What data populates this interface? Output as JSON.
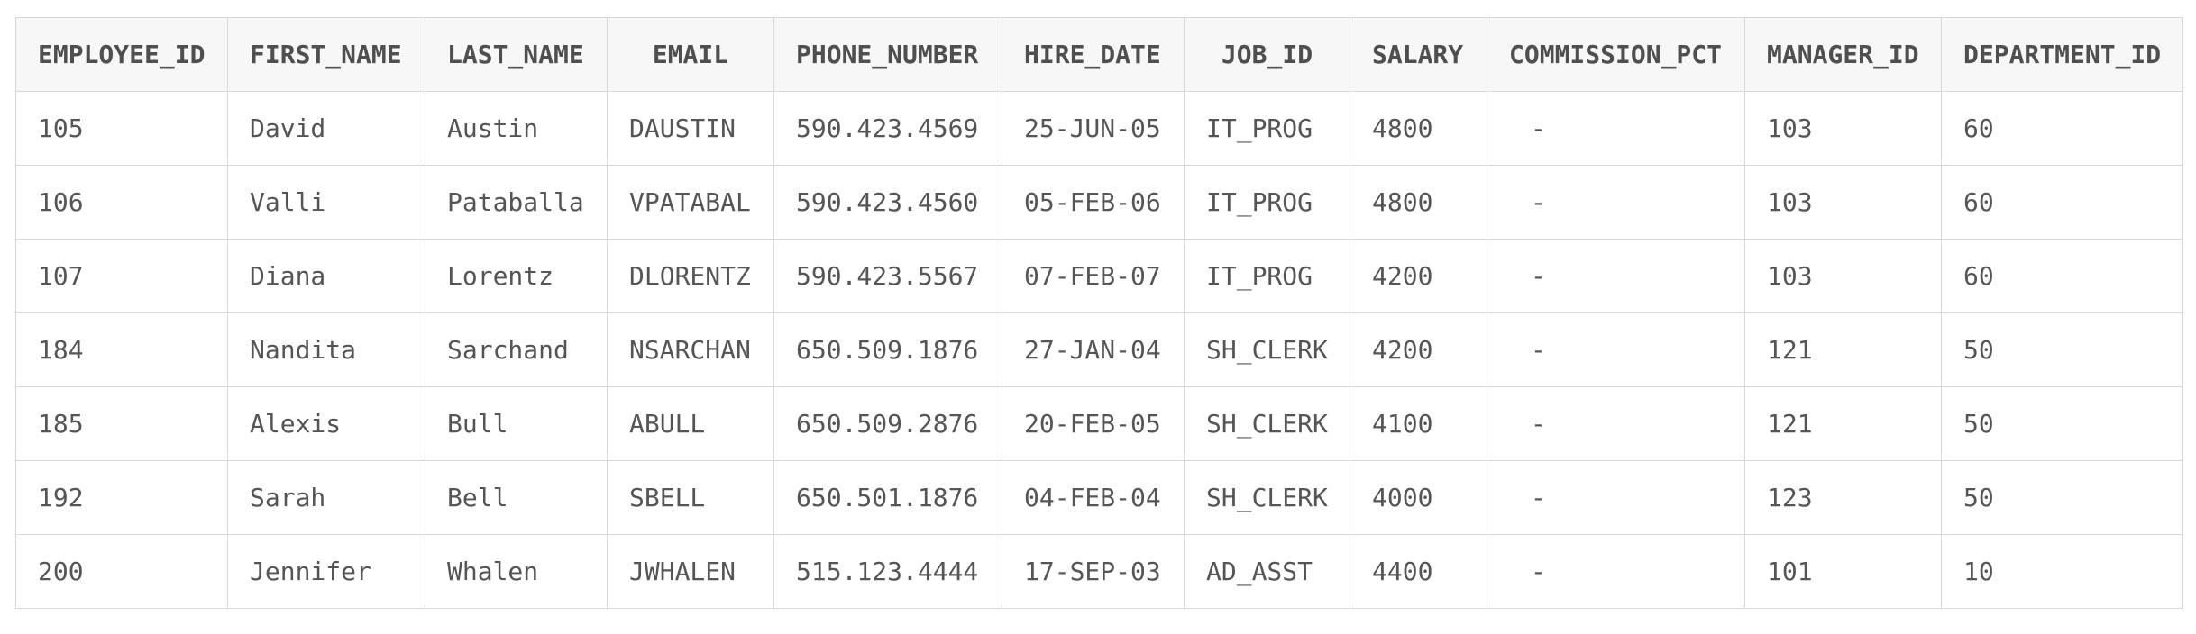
{
  "table": {
    "columns": [
      "EMPLOYEE_ID",
      "FIRST_NAME",
      "LAST_NAME",
      "EMAIL",
      "PHONE_NUMBER",
      "HIRE_DATE",
      "JOB_ID",
      "SALARY",
      "COMMISSION_PCT",
      "MANAGER_ID",
      "DEPARTMENT_ID"
    ],
    "rows": [
      [
        "105",
        "David",
        "Austin",
        "DAUSTIN",
        "590.423.4569",
        "25-JUN-05",
        "IT_PROG",
        "4800",
        "-",
        "103",
        "60"
      ],
      [
        "106",
        "Valli",
        "Pataballa",
        "VPATABAL",
        "590.423.4560",
        "05-FEB-06",
        "IT_PROG",
        "4800",
        "-",
        "103",
        "60"
      ],
      [
        "107",
        "Diana",
        "Lorentz",
        "DLORENTZ",
        "590.423.5567",
        "07-FEB-07",
        "IT_PROG",
        "4200",
        "-",
        "103",
        "60"
      ],
      [
        "184",
        "Nandita",
        "Sarchand",
        "NSARCHAN",
        "650.509.1876",
        "27-JAN-04",
        "SH_CLERK",
        "4200",
        "-",
        "121",
        "50"
      ],
      [
        "185",
        "Alexis",
        "Bull",
        "ABULL",
        "650.509.2876",
        "20-FEB-05",
        "SH_CLERK",
        "4100",
        "-",
        "121",
        "50"
      ],
      [
        "192",
        "Sarah",
        "Bell",
        "SBELL",
        "650.501.1876",
        "04-FEB-04",
        "SH_CLERK",
        "4000",
        "-",
        "123",
        "50"
      ],
      [
        "200",
        "Jennifer",
        "Whalen",
        "JWHALEN",
        "515.123.4444",
        "17-SEP-03",
        "AD_ASST",
        "4400",
        "-",
        "101",
        "10"
      ]
    ]
  }
}
